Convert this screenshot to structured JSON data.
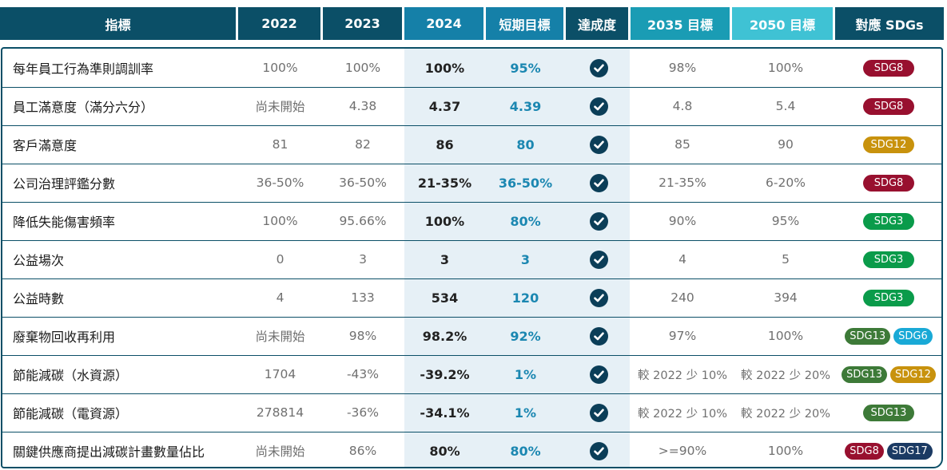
{
  "header": {
    "indicator": "指標",
    "y2022": "2022",
    "y2023": "2023",
    "y2024": "2024",
    "short_target": "短期目標",
    "achievement": "達成度",
    "target2035": "2035 目標",
    "target2050": "2050 目標",
    "sdgs": "對應 SDGs"
  },
  "colors": {
    "header_dark": "#0b4f67",
    "header_2024": "#1580a8",
    "header_2035": "#1a9cb4",
    "header_2050": "#3fc2d4",
    "row_highlight": "#e6f0f6",
    "target_text": "#1b87b1",
    "check_icon": "#0b3e58",
    "SDG3": "#0a9b4a",
    "SDG6": "#19a9d6",
    "SDG8": "#98102f",
    "SDG12": "#c8920d",
    "SDG13": "#3d7a38",
    "SDG17": "#1b3a63"
  },
  "rows": [
    {
      "name": "每年員工行為準則調訓率",
      "v2022": "100%",
      "v2023": "100%",
      "v2024": "100%",
      "short": "95%",
      "achieved_icon": "check-circle-icon",
      "t2035": "98%",
      "t2050": "100%",
      "sdgs": [
        "SDG8"
      ]
    },
    {
      "name": "員工滿意度（滿分六分）",
      "v2022": "尚未開始",
      "v2023": "4.38",
      "v2024": "4.37",
      "short": "4.39",
      "achieved_icon": "check-circle-icon",
      "t2035": "4.8",
      "t2050": "5.4",
      "sdgs": [
        "SDG8"
      ]
    },
    {
      "name": "客戶滿意度",
      "v2022": "81",
      "v2023": "82",
      "v2024": "86",
      "short": "80",
      "achieved_icon": "check-circle-icon",
      "t2035": "85",
      "t2050": "90",
      "sdgs": [
        "SDG12"
      ]
    },
    {
      "name": "公司治理評鑑分數",
      "v2022": "36-50%",
      "v2023": "36-50%",
      "v2024": "21-35%",
      "short": "36-50%",
      "achieved_icon": "check-circle-icon",
      "t2035": "21-35%",
      "t2050": "6-20%",
      "sdgs": [
        "SDG8"
      ]
    },
    {
      "name": "降低失能傷害頻率",
      "v2022": "100%",
      "v2023": "95.66%",
      "v2024": "100%",
      "short": "80%",
      "achieved_icon": "check-circle-icon",
      "t2035": "90%",
      "t2050": "95%",
      "sdgs": [
        "SDG3"
      ]
    },
    {
      "name": "公益場次",
      "v2022": "0",
      "v2023": "3",
      "v2024": "3",
      "short": "3",
      "achieved_icon": "check-circle-icon",
      "t2035": "4",
      "t2050": "5",
      "sdgs": [
        "SDG3"
      ]
    },
    {
      "name": "公益時數",
      "v2022": "4",
      "v2023": "133",
      "v2024": "534",
      "short": "120",
      "achieved_icon": "check-circle-icon",
      "t2035": "240",
      "t2050": "394",
      "sdgs": [
        "SDG3"
      ]
    },
    {
      "name": "廢棄物回收再利用",
      "v2022": "尚未開始",
      "v2023": "98%",
      "v2024": "98.2%",
      "short": "92%",
      "achieved_icon": "check-circle-icon",
      "t2035": "97%",
      "t2050": "100%",
      "sdgs": [
        "SDG13",
        "SDG6"
      ]
    },
    {
      "name": "節能減碳（水資源）",
      "v2022": "1704",
      "v2023": "-43%",
      "v2024": "-39.2%",
      "short": "1%",
      "achieved_icon": "check-circle-icon",
      "t2035": "較 2022 少 10%",
      "t2050": "較 2022 少 20%",
      "sdgs": [
        "SDG13",
        "SDG12"
      ]
    },
    {
      "name": "節能減碳（電資源）",
      "v2022": "278814",
      "v2023": "-36%",
      "v2024": "-34.1%",
      "short": "1%",
      "achieved_icon": "check-circle-icon",
      "t2035": "較 2022 少 10%",
      "t2050": "較 2022 少 20%",
      "sdgs": [
        "SDG13"
      ]
    },
    {
      "name": "關鍵供應商提出減碳計畫數量佔比",
      "v2022": "尚未開始",
      "v2023": "86%",
      "v2024": "80%",
      "short": "80%",
      "achieved_icon": "check-circle-icon",
      "t2035": ">=90%",
      "t2050": "100%",
      "sdgs": [
        "SDG8",
        "SDG17"
      ]
    }
  ]
}
